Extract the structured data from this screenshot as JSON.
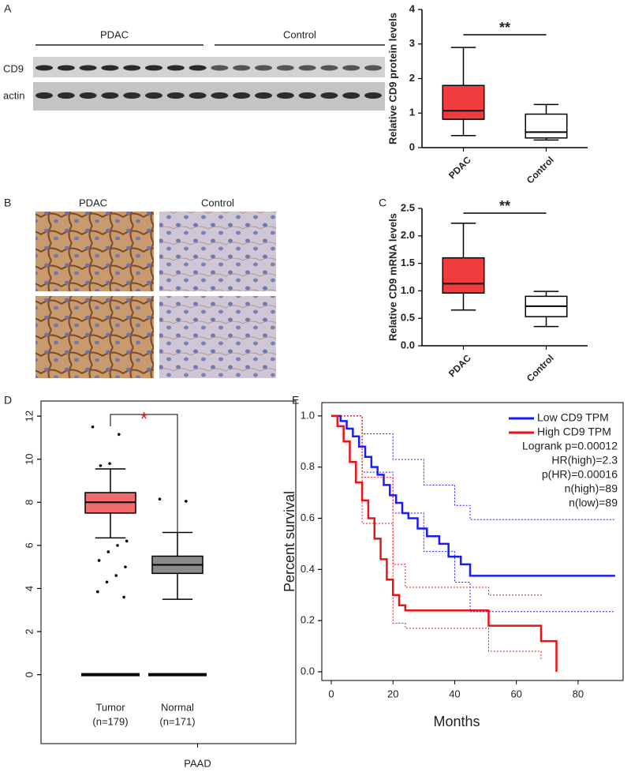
{
  "gel": {
    "panel": "A",
    "groups": [
      "PDAC",
      "Control"
    ],
    "rows": [
      "CD9",
      "actin"
    ]
  },
  "ihc": {
    "panel": "B",
    "columns": [
      "PDAC",
      "Control"
    ]
  },
  "chart_data": [
    {
      "type": "box",
      "ylabel": "Relative CD9 protein levels",
      "categories": [
        "PDAC",
        "Control"
      ],
      "colors": [
        "#f03c3c",
        "#ffffff"
      ],
      "min": [
        0.35,
        0.22
      ],
      "q1": [
        0.82,
        0.28
      ],
      "median": [
        1.07,
        0.45
      ],
      "q3": [
        1.8,
        0.97
      ],
      "max": [
        2.9,
        1.25
      ],
      "ylim": [
        0,
        4
      ],
      "yticks": [
        0,
        1,
        2,
        3,
        4
      ],
      "annotation": "**"
    },
    {
      "type": "box",
      "panel": "C",
      "ylabel": "Relative CD9 mRNA levels",
      "categories": [
        "PDAC",
        "Control"
      ],
      "colors": [
        "#f03c3c",
        "#ffffff"
      ],
      "min": [
        0.65,
        0.35
      ],
      "q1": [
        0.96,
        0.53
      ],
      "median": [
        1.13,
        0.72
      ],
      "q3": [
        1.6,
        0.9
      ],
      "max": [
        2.23,
        0.99
      ],
      "ylim": [
        0,
        2.5
      ],
      "yticks": [
        {
          "value": 0,
          "label": "0.0"
        },
        0.5,
        {
          "value": 1,
          "label": "1.0"
        },
        1.5,
        {
          "value": 2,
          "label": "2.0"
        },
        2.5
      ],
      "annotation": "**"
    },
    {
      "type": "box",
      "panel": "D",
      "xlabel": "PAAD",
      "categories": [
        "Tumor",
        "Normal"
      ],
      "category_notes": [
        "(n=179)",
        "(n=171)"
      ],
      "colors": [
        "#f26b6b",
        "#8a8a8a"
      ],
      "min": [
        6.35,
        3.5
      ],
      "q1": [
        7.5,
        4.7
      ],
      "median": [
        8.0,
        5.1
      ],
      "q3": [
        8.45,
        5.5
      ],
      "max": [
        9.55,
        6.6
      ],
      "outliers": [
        [
          11.5,
          11.15,
          9.8,
          9.7,
          6.2,
          6.0,
          5.7,
          5.3,
          5.0,
          4.6,
          4.3,
          3.85,
          3.6
        ],
        [
          8.15,
          8.05
        ]
      ],
      "ylim": [
        -3.2,
        12.7
      ],
      "yticks": [
        0,
        2,
        4,
        6,
        8,
        10,
        12
      ],
      "annotation": "*",
      "annotation_color": "#e02020"
    },
    {
      "type": "survival",
      "panel": "E",
      "xlabel": "Months",
      "ylabel": "Percent survival",
      "series": [
        {
          "name": "Low CD9 TPM",
          "color": "#1a1aff",
          "x": [
            0,
            3,
            5,
            7,
            9,
            11,
            13,
            15,
            17,
            19,
            21,
            23,
            25,
            28,
            31,
            35,
            38,
            42,
            45,
            92
          ],
          "values": [
            1.0,
            0.98,
            0.95,
            0.92,
            0.88,
            0.84,
            0.8,
            0.77,
            0.73,
            0.69,
            0.66,
            0.62,
            0.6,
            0.56,
            0.53,
            0.5,
            0.45,
            0.42,
            0.375,
            0.375
          ],
          "ci_x": [
            0,
            10,
            20,
            30,
            40,
            45,
            92
          ],
          "ci_upper": [
            1.0,
            0.93,
            0.83,
            0.73,
            0.65,
            0.595,
            0.595
          ],
          "ci_lower": [
            1.0,
            0.78,
            0.62,
            0.47,
            0.35,
            0.235,
            0.235
          ]
        },
        {
          "name": "High CD9 TPM",
          "color": "#ee1111",
          "x": [
            0,
            2,
            4,
            6,
            8,
            10,
            12,
            14,
            16,
            18,
            20,
            22,
            24,
            51,
            68,
            73
          ],
          "values": [
            1.0,
            0.96,
            0.9,
            0.82,
            0.74,
            0.67,
            0.6,
            0.52,
            0.44,
            0.36,
            0.3,
            0.26,
            0.24,
            0.18,
            0.12,
            0.0
          ],
          "ci_x": [
            0,
            10,
            20,
            24,
            51,
            68
          ],
          "ci_upper": [
            1.0,
            0.76,
            0.42,
            0.33,
            0.3,
            0.29
          ],
          "ci_lower": [
            1.0,
            0.58,
            0.19,
            0.17,
            0.08,
            0.05
          ]
        }
      ],
      "annotations": [
        "Logrank p=0.00012",
        "HR(high)=2.3",
        "p(HR)=0.00016",
        "n(high)=89",
        "n(low)=89"
      ],
      "xlim": [
        -3.07,
        94.6
      ],
      "xticks": [
        0,
        20,
        40,
        60,
        80
      ],
      "ylim": [
        -0.034,
        1.052
      ],
      "yticks": [
        {
          "value": 0,
          "label": "0.0"
        },
        0.2,
        0.4,
        0.6,
        0.8,
        {
          "value": 1,
          "label": "1.0"
        }
      ]
    }
  ]
}
